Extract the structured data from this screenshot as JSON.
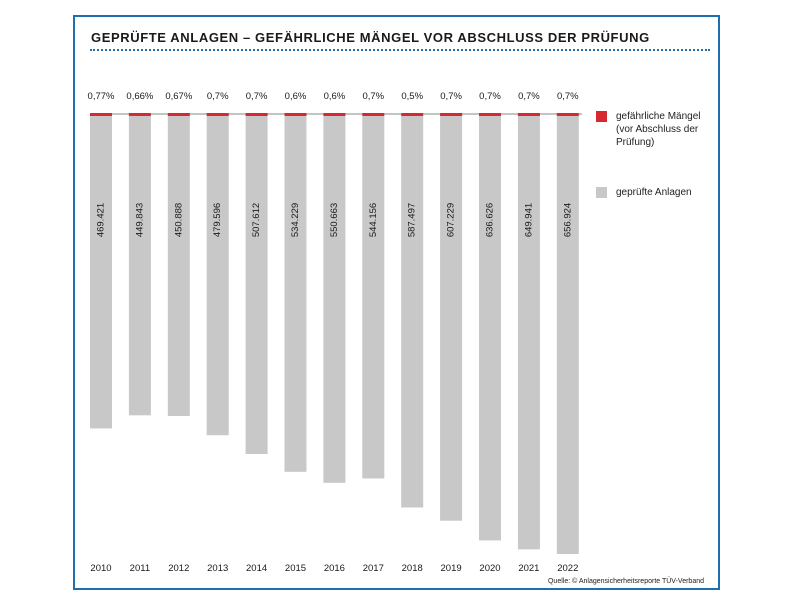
{
  "colors": {
    "frame": "#1f6fb0",
    "bar": "#c8c8c8",
    "defect": "#d7282f",
    "baseline": "#8a8a8a",
    "text": "#1a1a1a"
  },
  "chart_data": {
    "type": "bar",
    "title": "GEPRÜFTE ANLAGEN – GEFÄHRLICHE MÄNGEL VOR ABSCHLUSS DER PRÜFUNG",
    "xlabel": "",
    "ylabel": "",
    "ylim": [
      0,
      656924
    ],
    "grid": false,
    "legend_position": "right",
    "categories": [
      "2010",
      "2011",
      "2012",
      "2013",
      "2014",
      "2015",
      "2016",
      "2017",
      "2018",
      "2019",
      "2020",
      "2021",
      "2022"
    ],
    "series": [
      {
        "name": "geprüfte Anlagen",
        "color": "#c8c8c8",
        "values": [
          469421,
          449843,
          450888,
          479596,
          507612,
          534229,
          550663,
          544156,
          587497,
          607229,
          636626,
          649941,
          656924
        ],
        "labels": [
          "469.421",
          "449.843",
          "450.888",
          "479.596",
          "507.612",
          "534.229",
          "550.663",
          "544.156",
          "587.497",
          "607.229",
          "636.626",
          "649.941",
          "656.924"
        ]
      },
      {
        "name": "gefährliche Mängel (vor Abschluss der Prüfung)",
        "color": "#d7282f",
        "values": [
          0.77,
          0.66,
          0.67,
          0.7,
          0.7,
          0.6,
          0.6,
          0.7,
          0.5,
          0.7,
          0.7,
          0.7,
          0.7
        ],
        "labels": [
          "0,77%",
          "0,66%",
          "0,67%",
          "0,7%",
          "0,7%",
          "0,6%",
          "0,6%",
          "0,7%",
          "0,5%",
          "0,7%",
          "0,7%",
          "0,7%",
          "0,7%"
        ]
      }
    ]
  },
  "legend": [
    {
      "label": "gefährliche Mängel (vor Abschluss der Prüfung)",
      "color": "#d7282f"
    },
    {
      "label": "geprüfte Anlagen",
      "color": "#c8c8c8"
    }
  ],
  "source": "Quelle: © Anlagensicherheitsreporte TÜV-Verband"
}
